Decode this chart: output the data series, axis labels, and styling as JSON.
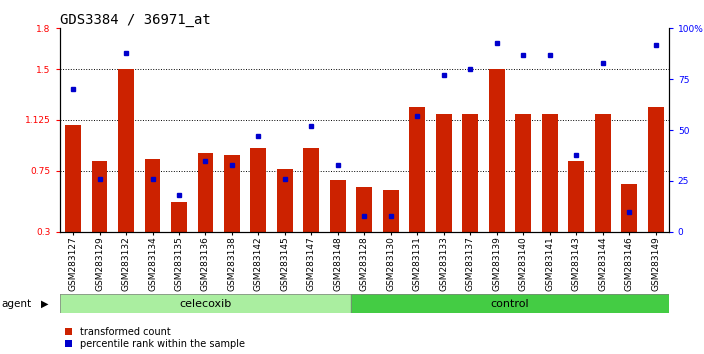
{
  "title": "GDS3384 / 36971_at",
  "samples": [
    "GSM283127",
    "GSM283129",
    "GSM283132",
    "GSM283134",
    "GSM283135",
    "GSM283136",
    "GSM283138",
    "GSM283142",
    "GSM283145",
    "GSM283147",
    "GSM283148",
    "GSM283128",
    "GSM283130",
    "GSM283131",
    "GSM283133",
    "GSM283137",
    "GSM283139",
    "GSM283140",
    "GSM283141",
    "GSM283143",
    "GSM283144",
    "GSM283146",
    "GSM283149"
  ],
  "red_values": [
    1.09,
    0.82,
    1.5,
    0.84,
    0.52,
    0.88,
    0.87,
    0.92,
    0.76,
    0.92,
    0.68,
    0.63,
    0.61,
    1.22,
    1.17,
    1.17,
    1.5,
    1.17,
    1.17,
    0.82,
    1.17,
    0.65,
    1.22
  ],
  "blue_values_pct": [
    70,
    26,
    88,
    26,
    18,
    35,
    33,
    47,
    26,
    52,
    33,
    8,
    8,
    57,
    77,
    80,
    93,
    87,
    87,
    38,
    83,
    10,
    92
  ],
  "celecoxib_count": 11,
  "control_count": 12,
  "ylim_left": [
    0.3,
    1.8
  ],
  "ylim_right": [
    0,
    100
  ],
  "yticks_left": [
    0.3,
    0.75,
    1.125,
    1.5,
    1.8
  ],
  "yticks_right": [
    0,
    25,
    50,
    75,
    100
  ],
  "hlines": [
    0.75,
    1.125,
    1.5
  ],
  "bar_color": "#CC2200",
  "dot_color": "#0000CC",
  "celecoxib_color": "#AAEEA0",
  "control_color": "#44CC44",
  "agent_label": "agent",
  "celecoxib_label": "celecoxib",
  "control_label": "control",
  "legend_red": "transformed count",
  "legend_blue": "percentile rank within the sample",
  "title_fontsize": 10,
  "tick_fontsize": 6.5,
  "label_fontsize": 8
}
